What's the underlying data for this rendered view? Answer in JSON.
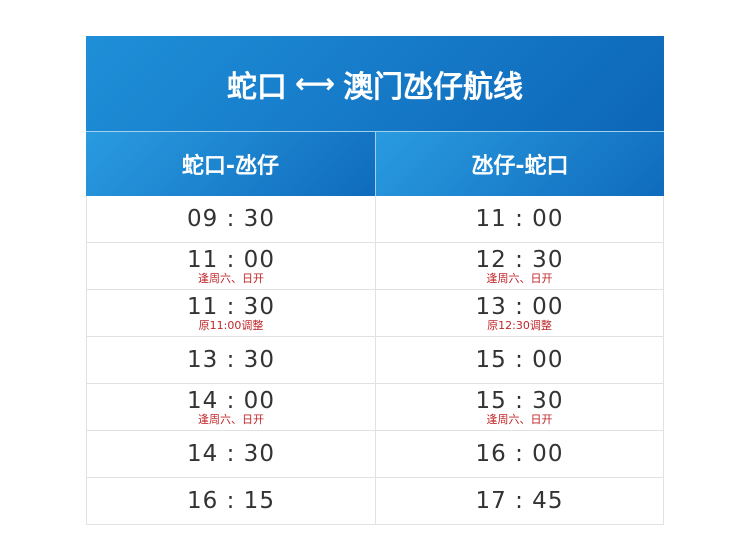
{
  "title": {
    "left": "蛇口",
    "arrow": "⟷",
    "right": "澳门氹仔航线"
  },
  "columns": [
    "蛇口-氹仔",
    "氹仔-蛇口"
  ],
  "rows": [
    [
      {
        "time": "09 : 30",
        "note": ""
      },
      {
        "time": "11 : 00",
        "note": ""
      }
    ],
    [
      {
        "time": "11 : 00",
        "note": "逢周六、日开"
      },
      {
        "time": "12 : 30",
        "note": "逢周六、日开"
      }
    ],
    [
      {
        "time": "11 : 30",
        "note": "原11:00调整"
      },
      {
        "time": "13 : 00",
        "note": "原12:30调整"
      }
    ],
    [
      {
        "time": "13 : 30",
        "note": ""
      },
      {
        "time": "15 : 00",
        "note": ""
      }
    ],
    [
      {
        "time": "14 : 00",
        "note": "逢周六、日开"
      },
      {
        "time": "15 : 30",
        "note": "逢周六、日开"
      }
    ],
    [
      {
        "time": "14 : 30",
        "note": ""
      },
      {
        "time": "16 : 00",
        "note": ""
      }
    ],
    [
      {
        "time": "16 : 15",
        "note": ""
      },
      {
        "time": "17 : 45",
        "note": ""
      }
    ]
  ],
  "colors": {
    "header_blue": "#1478c8",
    "note_red": "#c0262a"
  }
}
